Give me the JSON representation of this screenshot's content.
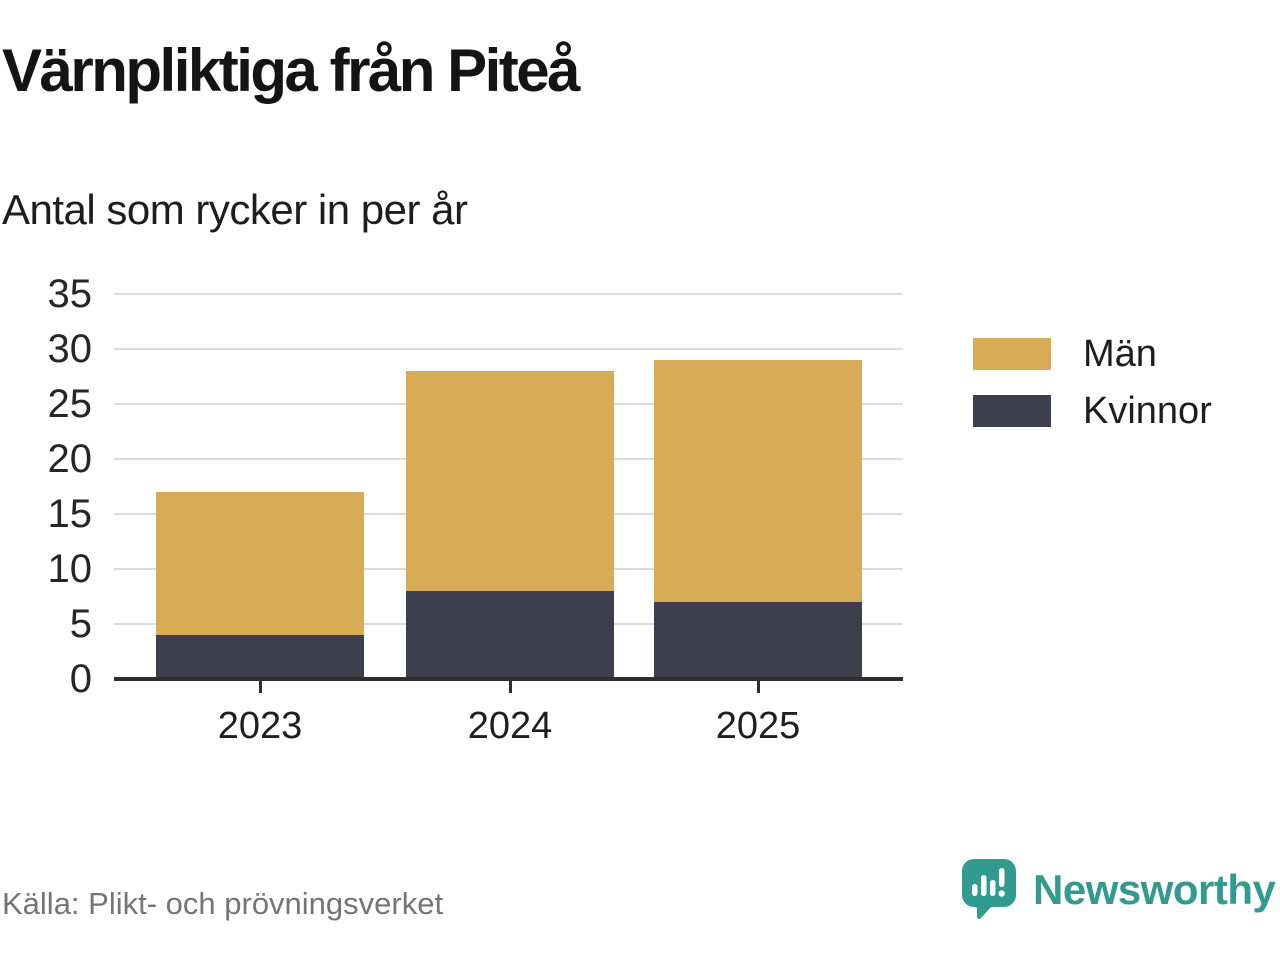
{
  "header": {
    "title": "Värnpliktiga från Piteå",
    "subtitle": "Antal som rycker in per år"
  },
  "chart_data": {
    "type": "bar",
    "stacked": true,
    "title": "Värnpliktiga från Piteå",
    "subtitle": "Antal som rycker in per år",
    "categories": [
      "2023",
      "2024",
      "2025"
    ],
    "series": [
      {
        "name": "Män",
        "color": "#d8ab57",
        "values": [
          13,
          20,
          22
        ]
      },
      {
        "name": "Kvinnor",
        "color": "#3f3e4c",
        "values": [
          4,
          8,
          7
        ]
      }
    ],
    "stack_totals": [
      17,
      28,
      29
    ],
    "xlabel": "",
    "ylabel": "",
    "ylim": [
      0,
      35
    ],
    "yticks": [
      0,
      5,
      10,
      15,
      20,
      25,
      30,
      35
    ],
    "grid": "horizontal-only",
    "legend_position": "right"
  },
  "footer": {
    "source": "Källa: Plikt- och prövningsverket",
    "brand": "Newsworthy"
  },
  "colors": {
    "men": "#d8ab57",
    "women": "#3f3e4c",
    "gridline": "#dcdcdc",
    "axis": "#2e2e2e",
    "brand_teal": "#319b8f",
    "source_text": "#757575"
  }
}
